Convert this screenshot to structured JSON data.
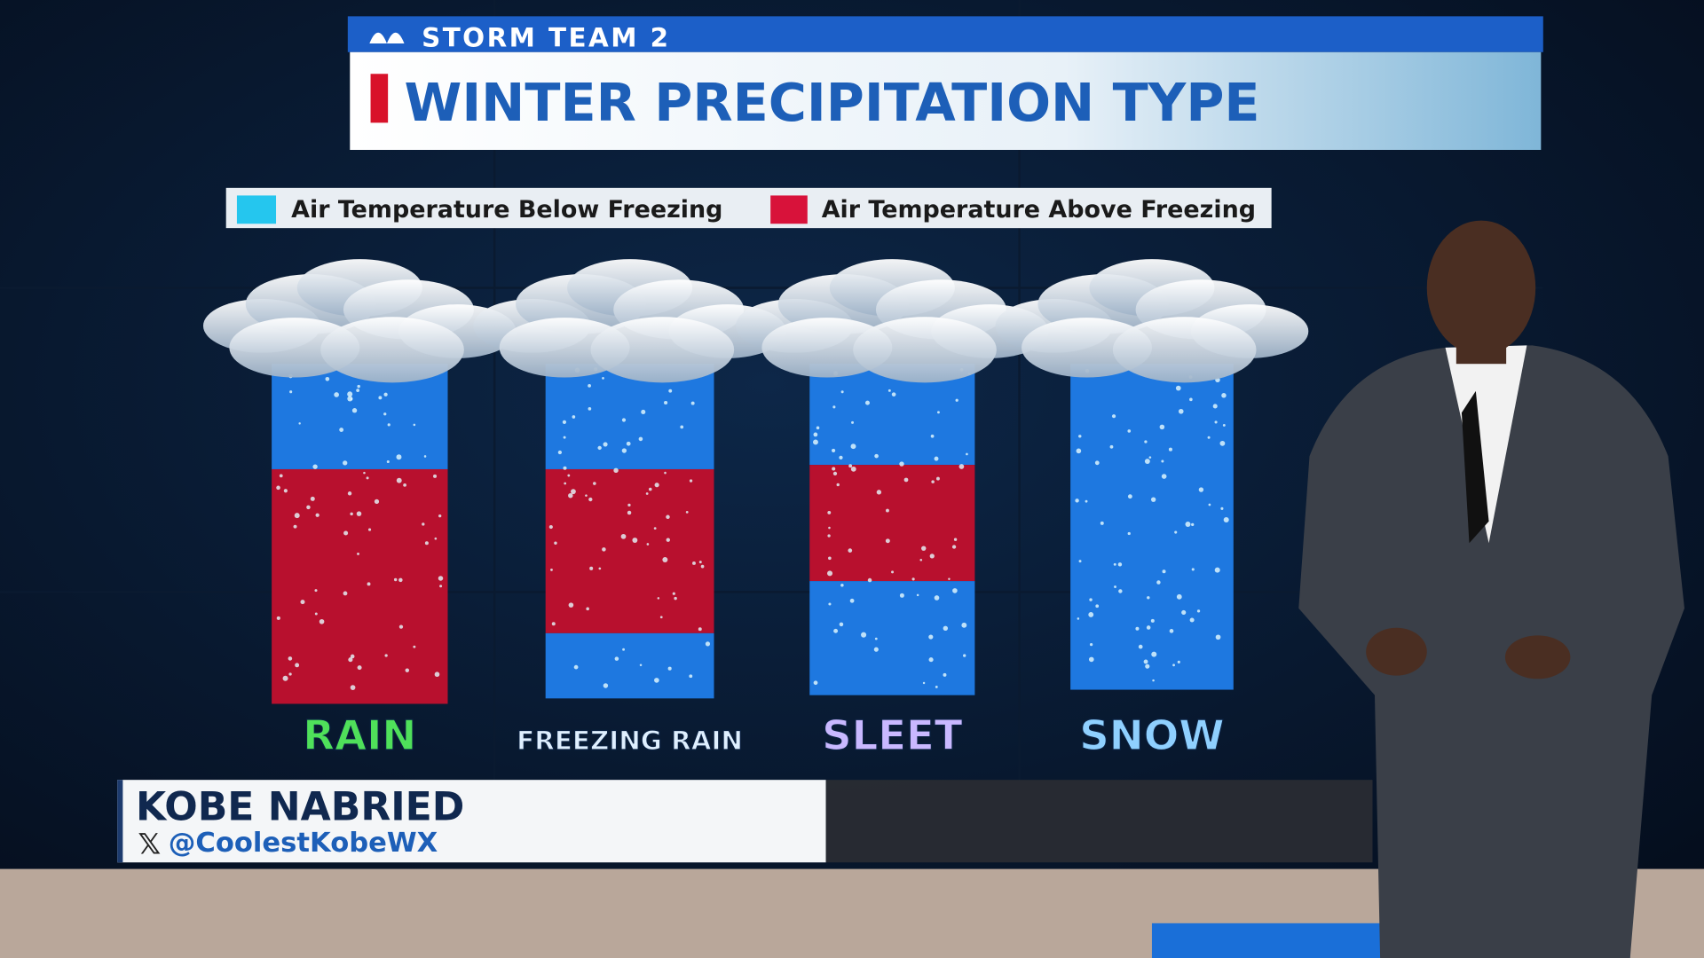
{
  "header": {
    "brand": "STORM TEAM 2",
    "title": "WINTER PRECIPITATION TYPE"
  },
  "legend": {
    "items": [
      "Air Temperature Below Freezing",
      "Air Temperature Above Freezing"
    ]
  },
  "columns": [
    {
      "label": "RAIN"
    },
    {
      "label": "FREEZING RAIN"
    },
    {
      "label": "SLEET"
    },
    {
      "label": "SNOW"
    }
  ],
  "lower_third": {
    "name": "KOBE NABRIED",
    "handle": "@CoolestKobeWX"
  }
}
